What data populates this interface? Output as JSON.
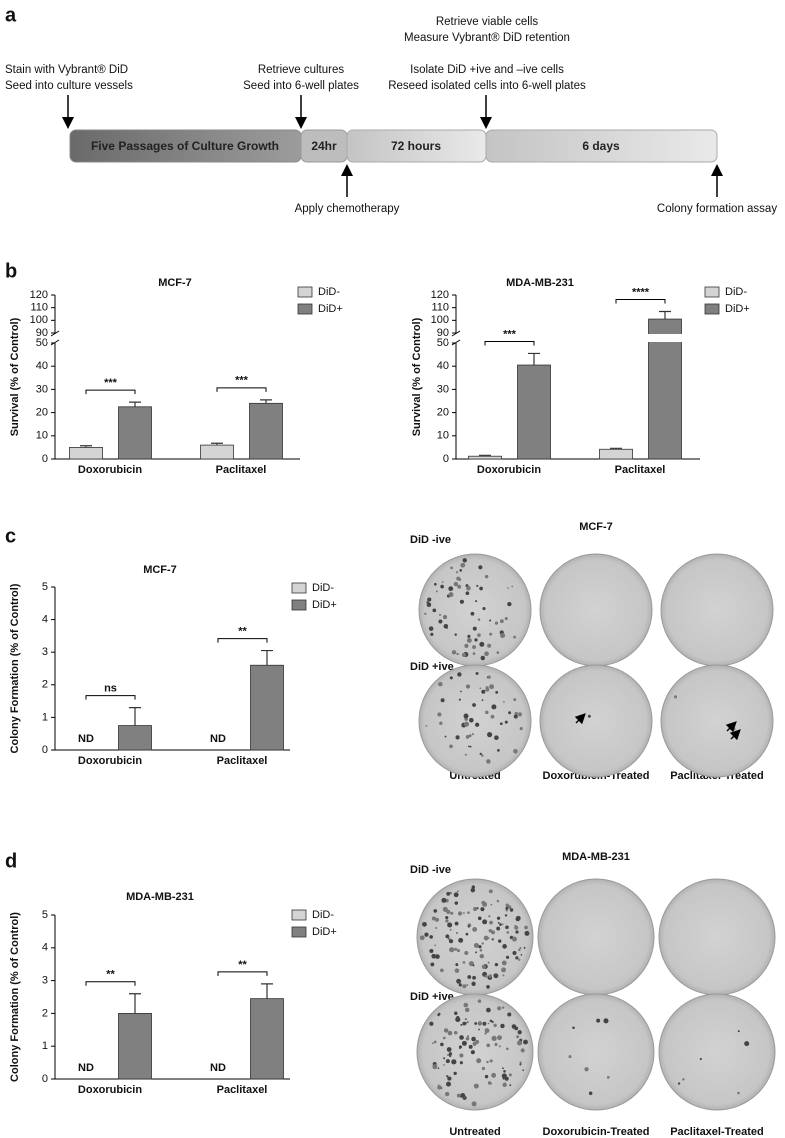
{
  "panel_labels": [
    "a",
    "b",
    "c",
    "d"
  ],
  "timeline": {
    "notes": [
      [
        "Stain with Vybrant® DiD",
        "Seed into culture vessels"
      ],
      [
        "Retrieve cultures",
        "Seed into 6-well plates"
      ],
      [
        "Retrieve viable cells",
        "Measure Vybrant® DiD retention",
        "Isolate DiD +ive and –ive cells",
        "Reseed isolated cells into 6-well plates"
      ]
    ],
    "segments": [
      "Five Passages of Culture Growth",
      "24hr",
      "72 hours",
      "6 days"
    ],
    "bottom_notes": [
      "Apply chemotherapy",
      "Colony formation assay"
    ]
  },
  "chart_data": [
    {
      "type": "bar",
      "title": "MCF-7",
      "ylabel": "Survival (% of Control)",
      "categories": [
        "Doxorubicin",
        "Paclitaxel"
      ],
      "series": [
        {
          "name": "DiD-",
          "color": "#d4d4d4",
          "values": [
            5,
            6
          ],
          "errors": [
            0.7,
            0.8
          ]
        },
        {
          "name": "DiD+",
          "color": "#808080",
          "values": [
            22.5,
            24
          ],
          "errors": [
            2,
            1.5
          ]
        }
      ],
      "ylim": [
        0,
        120
      ],
      "y_break": [
        50,
        90
      ],
      "yticks": [
        0,
        10,
        20,
        30,
        40,
        50,
        90,
        100,
        110,
        120
      ],
      "significance": [
        "***",
        "***"
      ],
      "legend": "upper right"
    },
    {
      "type": "bar",
      "title": "MDA-MB-231",
      "ylabel": "Survival (% of Control)",
      "categories": [
        "Doxorubicin",
        "Paclitaxel"
      ],
      "series": [
        {
          "name": "DiD-",
          "color": "#d4d4d4",
          "values": [
            1.2,
            4.2
          ],
          "errors": [
            0.4,
            0.4
          ]
        },
        {
          "name": "DiD+",
          "color": "#808080",
          "values": [
            40.5,
            101
          ],
          "errors": [
            5,
            6
          ]
        }
      ],
      "ylim": [
        0,
        120
      ],
      "y_break": [
        50,
        90
      ],
      "yticks": [
        0,
        10,
        20,
        30,
        40,
        50,
        90,
        100,
        110,
        120
      ],
      "significance": [
        "***",
        "****"
      ],
      "legend": "upper right"
    },
    {
      "type": "bar",
      "title": "MCF-7",
      "ylabel": "Colony Formation (% of Control)",
      "categories": [
        "Doxorubicin",
        "Paclitaxel"
      ],
      "series": [
        {
          "name": "DiD-",
          "color": "#d4d4d4",
          "values": [
            null,
            null
          ],
          "errors": [
            null,
            null
          ]
        },
        {
          "name": "DiD+",
          "color": "#808080",
          "values": [
            0.75,
            2.6
          ],
          "errors": [
            0.55,
            0.45
          ]
        }
      ],
      "ylim": [
        0,
        5
      ],
      "yticks": [
        0,
        1,
        2,
        3,
        4,
        5
      ],
      "significance": [
        "ns",
        "**"
      ],
      "nd_label": "ND",
      "legend": "upper right"
    },
    {
      "type": "bar",
      "title": "MDA-MB-231",
      "ylabel": "Colony Formation (% of Control)",
      "categories": [
        "Doxorubicin",
        "Paclitaxel"
      ],
      "series": [
        {
          "name": "DiD-",
          "color": "#d4d4d4",
          "values": [
            null,
            null
          ],
          "errors": [
            null,
            null
          ]
        },
        {
          "name": "DiD+",
          "color": "#808080",
          "values": [
            2.0,
            2.45
          ],
          "errors": [
            0.6,
            0.45
          ]
        }
      ],
      "ylim": [
        0,
        5
      ],
      "yticks": [
        0,
        1,
        2,
        3,
        4,
        5
      ],
      "significance": [
        "**",
        "**"
      ],
      "nd_label": "ND",
      "legend": "upper right"
    }
  ],
  "plates": [
    {
      "title": "MCF-7",
      "row_labels": [
        "DiD -ive",
        "DiD +ive"
      ],
      "column_labels": [
        "Untreated",
        "Doxorubicin-Treated",
        "Paclitaxel-Treated"
      ]
    },
    {
      "title": "MDA-MB-231",
      "row_labels": [
        "DiD -ive",
        "DiD +ive"
      ],
      "column_labels": [
        "Untreated",
        "Doxorubicin-Treated",
        "Paclitaxel-Treated"
      ]
    }
  ]
}
